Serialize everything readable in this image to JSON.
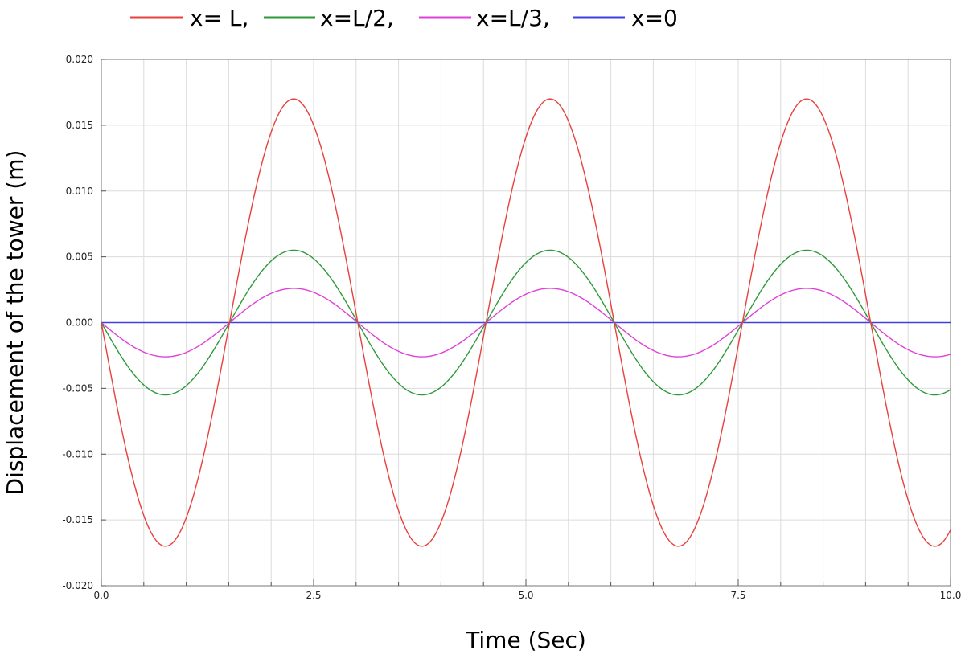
{
  "chart_data": {
    "type": "line",
    "title": "",
    "xlabel": "Time (Sec)",
    "ylabel": "Displacement of the tower (m)",
    "xlim": [
      0,
      10
    ],
    "ylim": [
      -0.02,
      0.02
    ],
    "x_ticks": [
      {
        "value": 0.0,
        "label": "0.0"
      },
      {
        "value": 2.5,
        "label": "2.5"
      },
      {
        "value": 5.0,
        "label": "5.0"
      },
      {
        "value": 7.5,
        "label": "7.5"
      },
      {
        "value": 10.0,
        "label": "10.0"
      }
    ],
    "y_ticks": [
      {
        "value": 0.02,
        "label": "0.020"
      },
      {
        "value": 0.015,
        "label": "0.015"
      },
      {
        "value": 0.01,
        "label": "0.010"
      },
      {
        "value": 0.005,
        "label": "0.005"
      },
      {
        "value": 0.0,
        "label": "0.000"
      },
      {
        "value": -0.005,
        "label": "-0.005"
      },
      {
        "value": -0.01,
        "label": "-0.010"
      },
      {
        "value": -0.015,
        "label": "-0.015"
      },
      {
        "value": -0.02,
        "label": "-0.020"
      }
    ],
    "grid": true,
    "legend_position": "top",
    "period_sec": 3.02,
    "series": [
      {
        "name": "x= L,",
        "color": "#e8403c",
        "amplitude": 0.017,
        "sign": -1
      },
      {
        "name": "x=L/2,",
        "color": "#2e9a3a",
        "amplitude": 0.0055,
        "sign": -1
      },
      {
        "name": "x=L/3,",
        "color": "#e040d8",
        "amplitude": 0.0026,
        "sign": -1
      },
      {
        "name": "x=0",
        "color": "#4040e0",
        "amplitude": 0.0,
        "sign": 1
      }
    ]
  }
}
